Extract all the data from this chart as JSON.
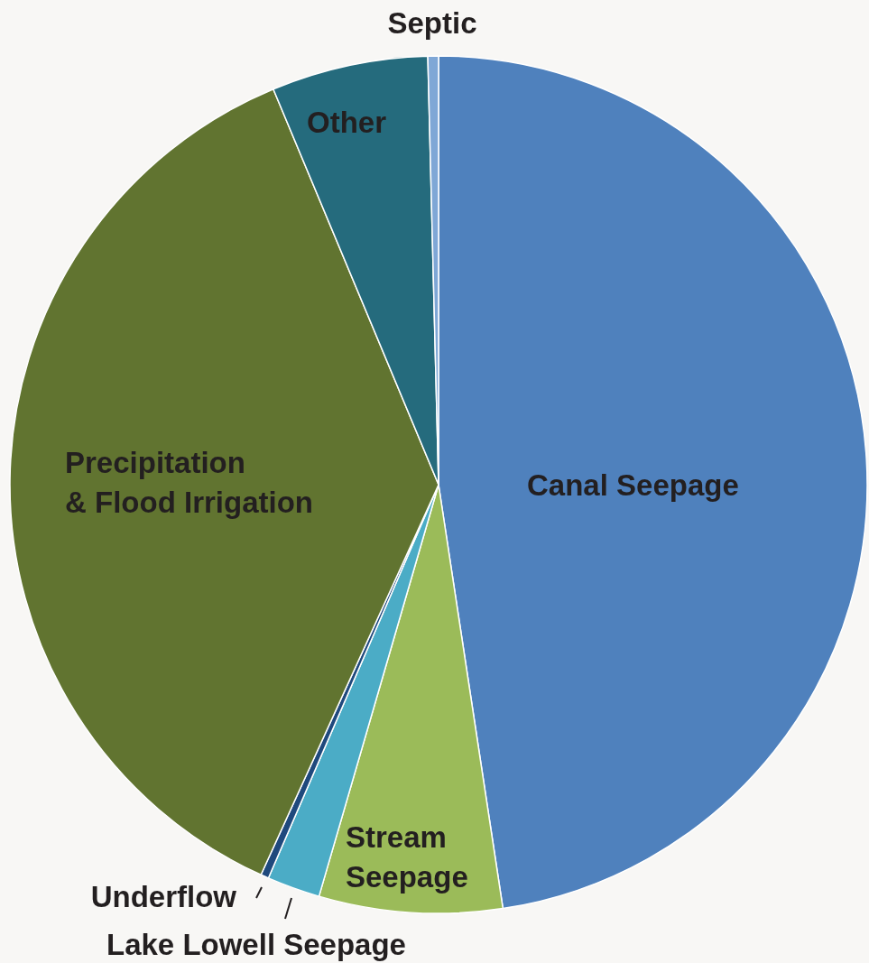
{
  "chart_data": {
    "type": "pie",
    "categories": [
      "Canal Seepage",
      "Stream\nSeepage",
      "Lake Lowell Seepage",
      "Underflow",
      "Precipitation\n& Flood Irrigation",
      "Other",
      "Septic"
    ],
    "values": [
      47.6,
      6.9,
      2.0,
      0.3,
      36.9,
      5.9,
      0.4
    ],
    "colors": [
      "#4f81bd",
      "#9bbb59",
      "#4bacc6",
      "#1f497d",
      "#617430",
      "#256b7d",
      "#7fa7d6"
    ]
  }
}
